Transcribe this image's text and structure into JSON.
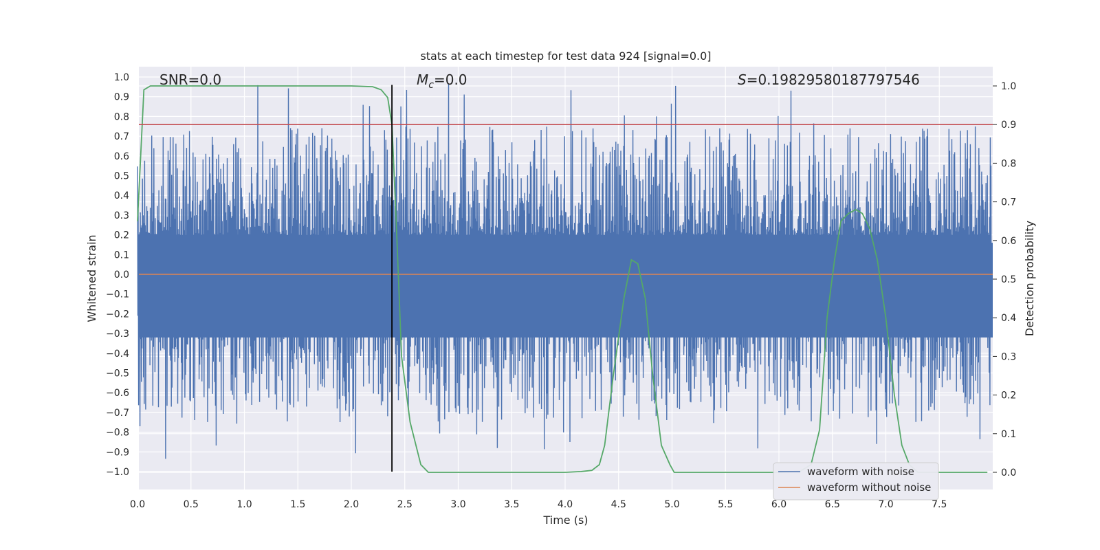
{
  "chart_data": {
    "type": "line",
    "title": "stats at each timestep for test data 924 [signal=0.0]",
    "xlabel": "Time (s)",
    "ylabel": "Whitened strain",
    "y2label": "Detection probability",
    "xlim": [
      0.0,
      8.0
    ],
    "ylim": [
      -1.1,
      1.05
    ],
    "y2lim": [
      -0.05,
      1.03
    ],
    "xticks": [
      "0.0",
      "0.5",
      "1.0",
      "1.5",
      "2.0",
      "2.5",
      "3.0",
      "3.5",
      "4.0",
      "4.5",
      "5.0",
      "5.5",
      "6.0",
      "6.5",
      "7.0",
      "7.5"
    ],
    "yticks": [
      "1.0",
      "0.9",
      "0.8",
      "0.7",
      "0.6",
      "0.5",
      "0.4",
      "0.3",
      "0.2",
      "0.1",
      "0.0",
      "-0.1",
      "-0.2",
      "-0.3",
      "-0.4",
      "-0.5",
      "-0.6",
      "-0.7",
      "-0.8",
      "-0.9",
      "-1.0"
    ],
    "y2ticks": [
      "1.0",
      "0.9",
      "0.8",
      "0.7",
      "0.6",
      "0.5",
      "0.4",
      "0.3",
      "0.2",
      "0.1",
      "0.0"
    ],
    "annotations": {
      "snr": "SNR=0.0",
      "mc_symbol": "M",
      "mc_sub": "c",
      "mc_value": "=0.0",
      "s_symbol": "S",
      "s_value": "=0.19829580187797546"
    },
    "series": [
      {
        "name": "waveform with noise",
        "color": "#4c72b0",
        "axis": "left",
        "kind": "noisy waveform, bulk within about ±0.4, spikes to about ±0.95"
      },
      {
        "name": "waveform without noise",
        "color": "#dd8452",
        "axis": "left",
        "y_constant": 0.0
      },
      {
        "name": "detection probability",
        "color": "#55a868",
        "axis": "right",
        "x": [
          0.0,
          0.06,
          0.12,
          0.2,
          0.5,
          1.0,
          1.5,
          2.0,
          2.2,
          2.28,
          2.34,
          2.38,
          2.42,
          2.47,
          2.55,
          2.65,
          2.72,
          2.8,
          3.0,
          3.5,
          4.0,
          4.15,
          4.25,
          4.32,
          4.37,
          4.45,
          4.55,
          4.62,
          4.68,
          4.75,
          4.82,
          4.9,
          4.98,
          5.02,
          5.1,
          5.5,
          6.0,
          6.2,
          6.3,
          6.38,
          6.45,
          6.52,
          6.58,
          6.65,
          6.72,
          6.78,
          6.85,
          6.92,
          7.0,
          7.08,
          7.15,
          7.22,
          7.3,
          7.5,
          7.95
        ],
        "y": [
          0.65,
          0.99,
          1.0,
          1.0,
          1.0,
          1.0,
          1.0,
          1.0,
          0.998,
          0.99,
          0.97,
          0.9,
          0.65,
          0.3,
          0.13,
          0.02,
          0.0,
          0.0,
          0.0,
          0.0,
          0.0,
          0.002,
          0.005,
          0.02,
          0.07,
          0.25,
          0.45,
          0.55,
          0.54,
          0.45,
          0.25,
          0.07,
          0.02,
          0.0,
          0.0,
          0.0,
          0.0,
          0.003,
          0.02,
          0.11,
          0.4,
          0.55,
          0.65,
          0.67,
          0.68,
          0.67,
          0.63,
          0.55,
          0.4,
          0.2,
          0.07,
          0.02,
          0.0,
          0.0,
          0.0
        ]
      },
      {
        "name": "threshold",
        "color": "#c44e52",
        "axis": "right",
        "y_constant": 0.9
      },
      {
        "name": "marker",
        "color": "#000000",
        "axis": "left",
        "x_constant": 2.38,
        "y_range": [
          -1.0,
          0.96
        ]
      }
    ],
    "legend": [
      "waveform with noise",
      "waveform without noise"
    ],
    "legend_loc": "lower-right",
    "grid": true
  },
  "colors": {
    "plot_bg": "#eaeaf2",
    "grid": "#ffffff",
    "noise": "#4c72b0",
    "clean": "#dd8452",
    "prob": "#55a868",
    "threshold": "#c44e52",
    "marker": "#000000"
  }
}
